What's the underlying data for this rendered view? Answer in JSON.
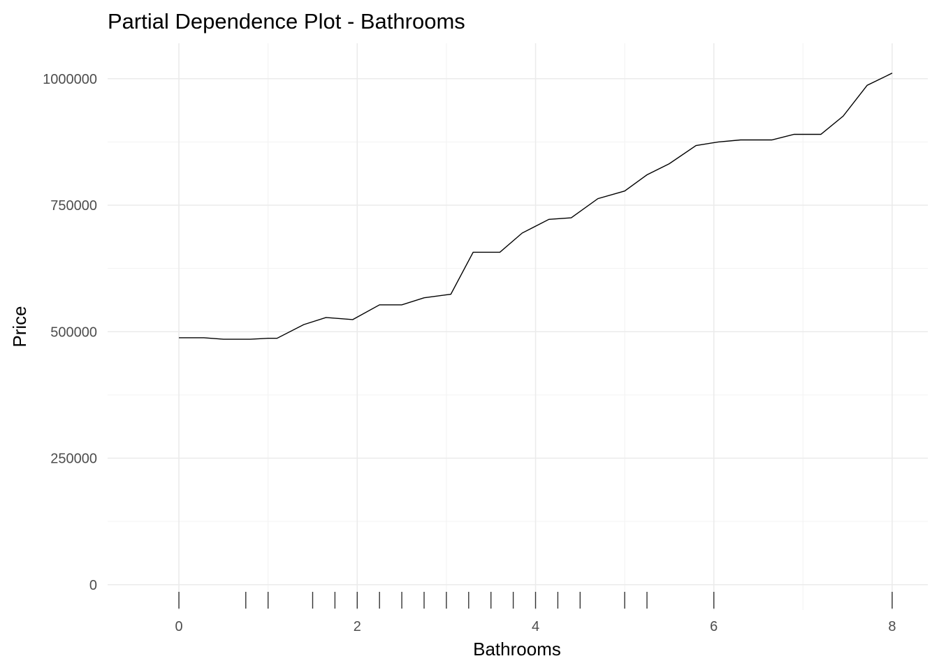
{
  "chart_data": {
    "type": "line",
    "title": "Partial Dependence Plot - Bathrooms",
    "xlabel": "Bathrooms",
    "ylabel": "Price",
    "xlim": [
      -0.8,
      8.4
    ],
    "ylim": [
      -50000,
      1070000
    ],
    "x_ticks": [
      0,
      2,
      4,
      6,
      8
    ],
    "x_tick_labels": [
      "0",
      "2",
      "4",
      "6",
      "8"
    ],
    "y_ticks": [
      0,
      250000,
      500000,
      750000,
      1000000
    ],
    "y_tick_labels": [
      "0",
      "250000",
      "500000",
      "750000",
      "1000000"
    ],
    "grid": true,
    "legend": "none",
    "series": [
      {
        "color": "#000000",
        "x": [
          0,
          0.28,
          0.5,
          0.8,
          1.0,
          1.1,
          1.4,
          1.65,
          1.95,
          2.25,
          2.5,
          2.75,
          3.05,
          3.3,
          3.6,
          3.85,
          4.15,
          4.4,
          4.7,
          5.0,
          5.25,
          5.5,
          5.8,
          6.05,
          6.3,
          6.65,
          6.9,
          7.2,
          7.45,
          7.72,
          8.0
        ],
        "y": [
          488000,
          488000,
          485000,
          485000,
          487000,
          487000,
          514000,
          528000,
          524000,
          553000,
          553000,
          567000,
          574000,
          657000,
          657000,
          695000,
          722000,
          725000,
          763000,
          778000,
          810000,
          832000,
          868000,
          875000,
          879000,
          879000,
          890000,
          890000,
          926000,
          987000,
          1011000
        ]
      }
    ],
    "rug_x": [
      0,
      0.75,
      1.0,
      1.5,
      1.75,
      2.0,
      2.25,
      2.5,
      2.75,
      3.0,
      3.25,
      3.5,
      3.75,
      4.0,
      4.25,
      4.5,
      5.0,
      5.25,
      6.0,
      8.0
    ]
  }
}
